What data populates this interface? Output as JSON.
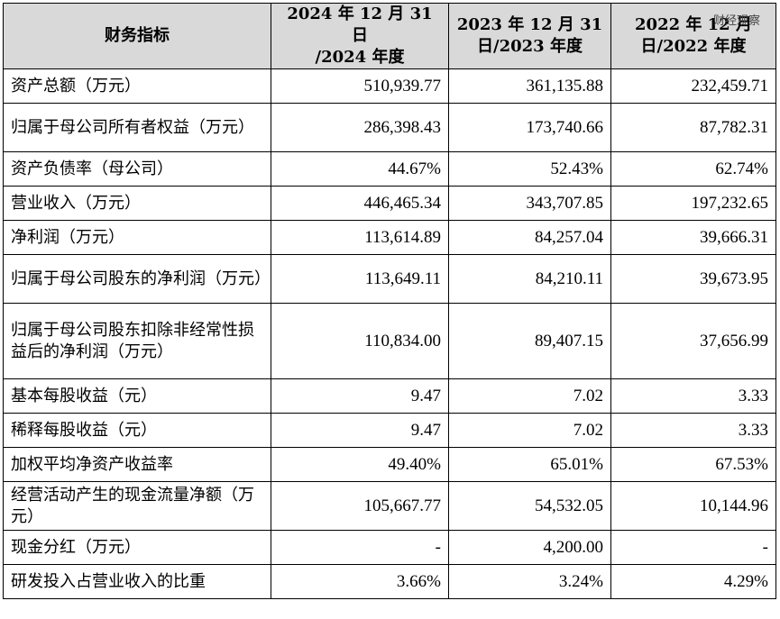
{
  "headers": [
    "财务指标",
    "2024 年 12 月 31 日/2024 年度",
    "2023 年 12 月 31 日/2023 年度",
    "2022 年 12 月 31 日/2022 年度"
  ],
  "header_lines": [
    [
      "财务指标"
    ],
    [
      "2024 年 12 月 31 日",
      "/2024 年度"
    ],
    [
      "2023 年 12 月 31",
      "日/2023 年度"
    ],
    [
      "2022 年 12 月",
      "日/2022 年度"
    ]
  ],
  "watermark": "财经观察",
  "rows": [
    {
      "label": "资产总额（万元）",
      "values": [
        "510,939.77",
        "361,135.88",
        "232,459.71"
      ]
    },
    {
      "label": "归属于母公司所有者权益（万元）",
      "values": [
        "286,398.43",
        "173,740.66",
        "87,782.31"
      ]
    },
    {
      "label": "资产负债率（母公司）",
      "values": [
        "44.67%",
        "52.43%",
        "62.74%"
      ]
    },
    {
      "label": "营业收入（万元）",
      "values": [
        "446,465.34",
        "343,707.85",
        "197,232.65"
      ]
    },
    {
      "label": "净利润（万元）",
      "values": [
        "113,614.89",
        "84,257.04",
        "39,666.31"
      ]
    },
    {
      "label": "归属于母公司股东的净利润（万元）",
      "values": [
        "113,649.11",
        "84,210.11",
        "39,673.95"
      ]
    },
    {
      "label": "归属于母公司股东扣除非经常性损益后的净利润（万元）",
      "values": [
        "110,834.00",
        "89,407.15",
        "37,656.99"
      ]
    },
    {
      "label": "基本每股收益（元）",
      "values": [
        "9.47",
        "7.02",
        "3.33"
      ]
    },
    {
      "label": "稀释每股收益（元）",
      "values": [
        "9.47",
        "7.02",
        "3.33"
      ]
    },
    {
      "label": "加权平均净资产收益率",
      "values": [
        "49.40%",
        "65.01%",
        "67.53%"
      ]
    },
    {
      "label": "经营活动产生的现金流量净额（万元）",
      "values": [
        "105,667.77",
        "54,532.05",
        "10,144.96"
      ]
    },
    {
      "label": "现金分红（万元）",
      "values": [
        "-",
        "4,200.00",
        "-"
      ]
    },
    {
      "label": "研发投入占营业收入的比重",
      "values": [
        "3.66%",
        "3.24%",
        "4.29%"
      ]
    }
  ]
}
